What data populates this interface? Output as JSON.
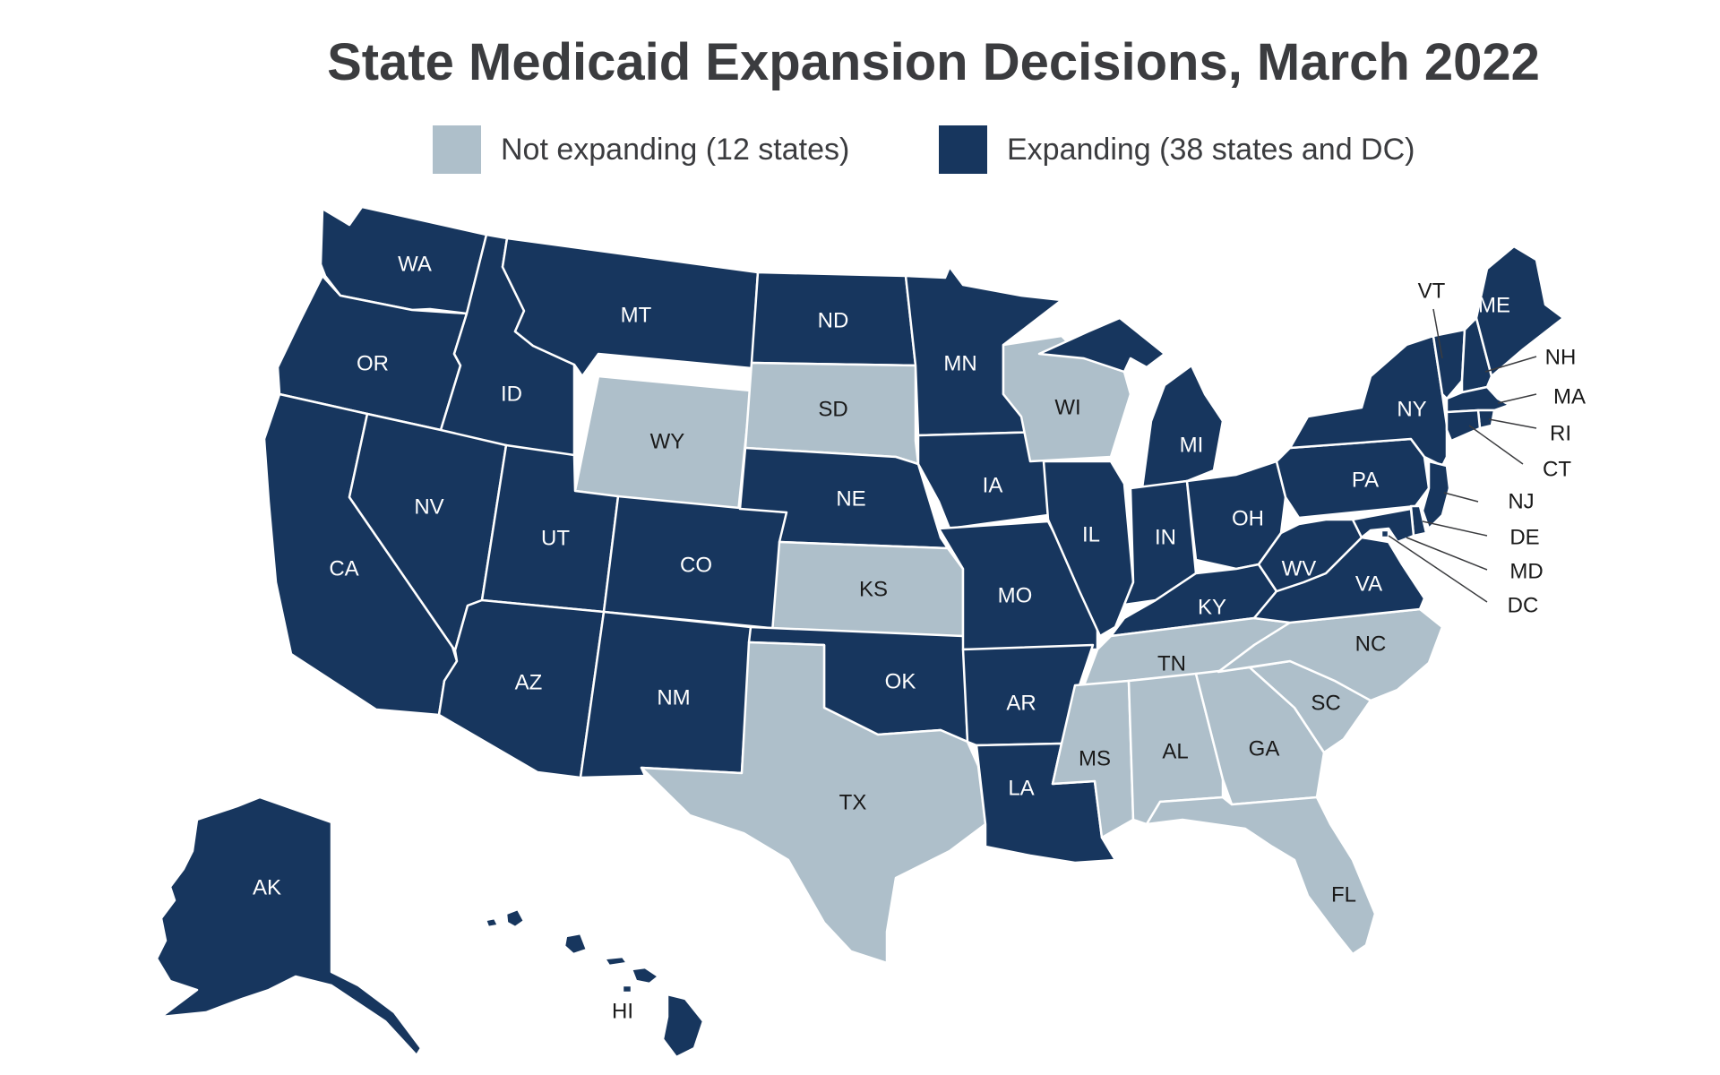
{
  "title": "State Medicaid Expansion Decisions, March 2022",
  "colors": {
    "expanding": "#17365e",
    "not_expanding": "#aebfca",
    "label_on_dark": "#ffffff",
    "label_on_light": "#1a1a1a"
  },
  "legend": [
    {
      "key": "not_expanding",
      "label": "Not expanding (12 states)"
    },
    {
      "key": "expanding",
      "label": "Expanding (38 states and DC)"
    }
  ],
  "states": [
    {
      "abbr": "WA",
      "status": "expanding"
    },
    {
      "abbr": "OR",
      "status": "expanding"
    },
    {
      "abbr": "CA",
      "status": "expanding"
    },
    {
      "abbr": "ID",
      "status": "expanding"
    },
    {
      "abbr": "NV",
      "status": "expanding"
    },
    {
      "abbr": "MT",
      "status": "expanding"
    },
    {
      "abbr": "WY",
      "status": "not_expanding"
    },
    {
      "abbr": "UT",
      "status": "expanding"
    },
    {
      "abbr": "AZ",
      "status": "expanding"
    },
    {
      "abbr": "CO",
      "status": "expanding"
    },
    {
      "abbr": "NM",
      "status": "expanding"
    },
    {
      "abbr": "ND",
      "status": "expanding"
    },
    {
      "abbr": "SD",
      "status": "not_expanding"
    },
    {
      "abbr": "NE",
      "status": "expanding"
    },
    {
      "abbr": "KS",
      "status": "not_expanding"
    },
    {
      "abbr": "OK",
      "status": "expanding"
    },
    {
      "abbr": "TX",
      "status": "not_expanding"
    },
    {
      "abbr": "MN",
      "status": "expanding"
    },
    {
      "abbr": "IA",
      "status": "expanding"
    },
    {
      "abbr": "MO",
      "status": "expanding"
    },
    {
      "abbr": "AR",
      "status": "expanding"
    },
    {
      "abbr": "LA",
      "status": "expanding"
    },
    {
      "abbr": "WI",
      "status": "not_expanding"
    },
    {
      "abbr": "IL",
      "status": "expanding"
    },
    {
      "abbr": "MI",
      "status": "expanding"
    },
    {
      "abbr": "IN",
      "status": "expanding"
    },
    {
      "abbr": "OH",
      "status": "expanding"
    },
    {
      "abbr": "KY",
      "status": "expanding"
    },
    {
      "abbr": "TN",
      "status": "not_expanding"
    },
    {
      "abbr": "MS",
      "status": "not_expanding"
    },
    {
      "abbr": "AL",
      "status": "not_expanding"
    },
    {
      "abbr": "GA",
      "status": "not_expanding"
    },
    {
      "abbr": "FL",
      "status": "not_expanding"
    },
    {
      "abbr": "SC",
      "status": "not_expanding"
    },
    {
      "abbr": "NC",
      "status": "not_expanding"
    },
    {
      "abbr": "VA",
      "status": "expanding"
    },
    {
      "abbr": "WV",
      "status": "expanding"
    },
    {
      "abbr": "PA",
      "status": "expanding"
    },
    {
      "abbr": "NY",
      "status": "expanding"
    },
    {
      "abbr": "VT",
      "status": "expanding"
    },
    {
      "abbr": "NH",
      "status": "expanding"
    },
    {
      "abbr": "ME",
      "status": "expanding"
    },
    {
      "abbr": "MA",
      "status": "expanding"
    },
    {
      "abbr": "RI",
      "status": "expanding"
    },
    {
      "abbr": "CT",
      "status": "expanding"
    },
    {
      "abbr": "NJ",
      "status": "expanding"
    },
    {
      "abbr": "DE",
      "status": "expanding"
    },
    {
      "abbr": "MD",
      "status": "expanding"
    },
    {
      "abbr": "DC",
      "status": "expanding"
    },
    {
      "abbr": "AK",
      "status": "expanding"
    },
    {
      "abbr": "HI",
      "status": "expanding"
    }
  ]
}
